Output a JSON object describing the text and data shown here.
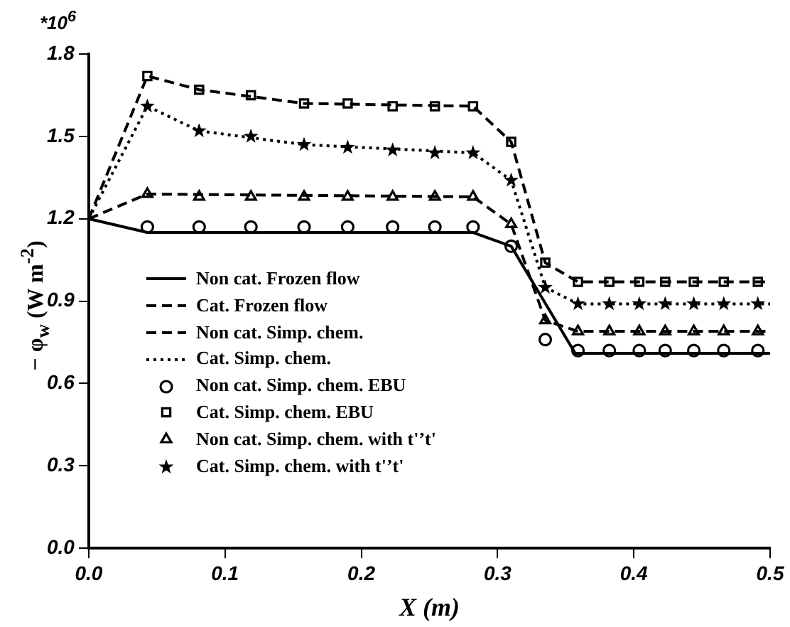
{
  "chart_data": {
    "type": "line",
    "xlabel": "X (m)",
    "ylabel": "− φ$_{w}$ (W m$^{-2}$)",
    "annotations": [
      "*10$^{6}$"
    ],
    "xlim": [
      0,
      0.5
    ],
    "xticks": [
      {
        "value": 0,
        "label": "0.0"
      },
      0.1,
      0.2,
      0.3,
      0.4,
      0.5
    ],
    "ylim": [
      0,
      1.8
    ],
    "yticks": [
      {
        "value": 0,
        "label": "0.0"
      },
      0.3,
      0.6,
      0.9,
      1.2,
      1.5,
      1.8
    ],
    "grid": false,
    "legend": "left",
    "marker": "none",
    "series": [
      {
        "name": "Non cat. Frozen flow",
        "type": "line",
        "line_style": "solid",
        "color": "#000000",
        "x": [
          0,
          0.043,
          0.282,
          0.31,
          0.357,
          0.5
        ],
        "values": [
          1.2,
          1.15,
          1.15,
          1.1,
          0.71,
          0.71
        ]
      },
      {
        "name": "Cat. Frozen flow",
        "type": "line",
        "line_style": "dashed",
        "color": "#000000",
        "x": [
          0,
          0.043,
          0.081,
          0.158,
          0.282,
          0.31,
          0.335,
          0.359,
          0.5
        ],
        "values": [
          1.2,
          1.72,
          1.67,
          1.62,
          1.61,
          1.48,
          1.04,
          0.97,
          0.97
        ]
      },
      {
        "name": "Non cat. Simp. chem.",
        "type": "line",
        "line_style": "dashed",
        "color": "#000000",
        "x": [
          0,
          0.043,
          0.282,
          0.31,
          0.335,
          0.359,
          0.5
        ],
        "values": [
          1.2,
          1.29,
          1.28,
          1.18,
          0.83,
          0.79,
          0.79
        ]
      },
      {
        "name": "Cat. Simp. chem.",
        "type": "line",
        "line_style": "dotted",
        "color": "#000000",
        "x": [
          0,
          0.043,
          0.081,
          0.158,
          0.282,
          0.31,
          0.335,
          0.359,
          0.5
        ],
        "values": [
          1.2,
          1.61,
          1.52,
          1.47,
          1.44,
          1.34,
          0.95,
          0.89,
          0.89
        ]
      },
      {
        "name": "Non cat. Simp. chem. EBU",
        "type": "scatter",
        "marker": "circle",
        "color": "#000000",
        "x": [
          0.043,
          0.081,
          0.119,
          0.158,
          0.19,
          0.223,
          0.254,
          0.282,
          0.31,
          0.335,
          0.359,
          0.382,
          0.404,
          0.423,
          0.444,
          0.466,
          0.491
        ],
        "values": [
          1.17,
          1.17,
          1.17,
          1.17,
          1.17,
          1.17,
          1.17,
          1.17,
          1.1,
          0.76,
          0.72,
          0.72,
          0.72,
          0.72,
          0.72,
          0.72,
          0.72
        ]
      },
      {
        "name": "Cat. Simp. chem. EBU",
        "type": "scatter",
        "marker": "square",
        "color": "#000000",
        "x": [
          0.043,
          0.081,
          0.119,
          0.158,
          0.19,
          0.223,
          0.254,
          0.282,
          0.31,
          0.335,
          0.359,
          0.382,
          0.404,
          0.423,
          0.444,
          0.466,
          0.491
        ],
        "values": [
          1.72,
          1.67,
          1.65,
          1.62,
          1.62,
          1.61,
          1.61,
          1.61,
          1.48,
          1.04,
          0.97,
          0.97,
          0.97,
          0.97,
          0.97,
          0.97,
          0.97
        ]
      },
      {
        "name": "Non cat. Simp. chem. with t'’t'",
        "type": "scatter",
        "marker": "triangle",
        "color": "#000000",
        "x": [
          0.043,
          0.081,
          0.119,
          0.158,
          0.19,
          0.223,
          0.254,
          0.282,
          0.31,
          0.335,
          0.359,
          0.382,
          0.404,
          0.423,
          0.444,
          0.466,
          0.491
        ],
        "values": [
          1.29,
          1.28,
          1.28,
          1.28,
          1.28,
          1.28,
          1.28,
          1.28,
          1.18,
          0.83,
          0.79,
          0.79,
          0.79,
          0.79,
          0.79,
          0.79,
          0.79
        ]
      },
      {
        "name": "Cat. Simp. chem. with t'’t'",
        "type": "scatter",
        "marker": "star",
        "color": "#000000",
        "x": [
          0.043,
          0.081,
          0.119,
          0.158,
          0.19,
          0.223,
          0.254,
          0.282,
          0.31,
          0.335,
          0.359,
          0.382,
          0.404,
          0.423,
          0.444,
          0.466,
          0.491
        ],
        "values": [
          1.61,
          1.52,
          1.5,
          1.47,
          1.46,
          1.45,
          1.44,
          1.44,
          1.34,
          0.95,
          0.89,
          0.89,
          0.89,
          0.89,
          0.89,
          0.89,
          0.89
        ]
      }
    ]
  }
}
